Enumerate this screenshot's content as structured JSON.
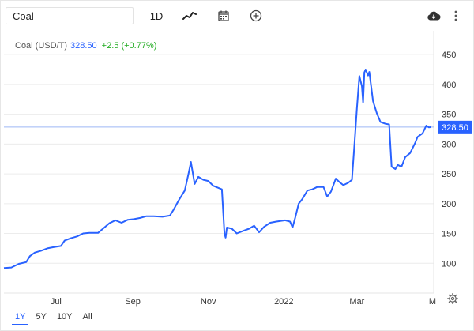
{
  "toolbar": {
    "symbol_value": "Coal",
    "period_label": "1D",
    "icons": [
      "line-chart-icon",
      "calendar-icon",
      "add-circle-icon",
      "cloud-download-icon",
      "more-vertical-icon"
    ]
  },
  "legend": {
    "name": "Coal (USD/T)",
    "price": "328.50",
    "change": "+2.5 (+0.77%)"
  },
  "ranges": [
    {
      "label": "1Y",
      "active": true
    },
    {
      "label": "5Y",
      "active": false
    },
    {
      "label": "10Y",
      "active": false
    },
    {
      "label": "All",
      "active": false
    }
  ],
  "colors": {
    "line": "#2962ff",
    "price_tag": "#2962ff",
    "change_up": "#22ab22",
    "grid": "#ececec"
  },
  "chart_data": {
    "type": "line",
    "title": "",
    "xlabel": "",
    "ylabel": "",
    "ylim": [
      50,
      490
    ],
    "xlim": [
      "2021-05-20",
      "2022-05-02"
    ],
    "y_ticks": [
      100,
      150,
      200,
      250,
      300,
      350,
      400,
      450
    ],
    "x_ticks": [
      {
        "date": "2021-07-01",
        "label": "Jul"
      },
      {
        "date": "2021-09-01",
        "label": "Sep"
      },
      {
        "date": "2021-11-01",
        "label": "Nov"
      },
      {
        "date": "2022-01-01",
        "label": "2022"
      },
      {
        "date": "2022-03-01",
        "label": "Mar"
      },
      {
        "date": "2022-05-01",
        "label": "M"
      }
    ],
    "last_price": 328.5,
    "grid": "horizontal",
    "series": [
      {
        "name": "",
        "points": [
          [
            "2021-05-20",
            92
          ],
          [
            "2021-05-26",
            93
          ],
          [
            "2021-06-01",
            99
          ],
          [
            "2021-06-07",
            102
          ],
          [
            "2021-06-10",
            112
          ],
          [
            "2021-06-14",
            118
          ],
          [
            "2021-06-19",
            121
          ],
          [
            "2021-06-24",
            125
          ],
          [
            "2021-06-29",
            127
          ],
          [
            "2021-07-05",
            129
          ],
          [
            "2021-07-08",
            138
          ],
          [
            "2021-07-13",
            142
          ],
          [
            "2021-07-18",
            145
          ],
          [
            "2021-07-23",
            150
          ],
          [
            "2021-07-28",
            151
          ],
          [
            "2021-08-04",
            151
          ],
          [
            "2021-08-08",
            158
          ],
          [
            "2021-08-13",
            167
          ],
          [
            "2021-08-18",
            172
          ],
          [
            "2021-08-23",
            168
          ],
          [
            "2021-08-28",
            173
          ],
          [
            "2021-09-02",
            174
          ],
          [
            "2021-09-07",
            176
          ],
          [
            "2021-09-12",
            179
          ],
          [
            "2021-09-18",
            179
          ],
          [
            "2021-09-25",
            178
          ],
          [
            "2021-10-01",
            180
          ],
          [
            "2021-10-04",
            190
          ],
          [
            "2021-10-08",
            205
          ],
          [
            "2021-10-13",
            222
          ],
          [
            "2021-10-16",
            250
          ],
          [
            "2021-10-18",
            270
          ],
          [
            "2021-10-21",
            233
          ],
          [
            "2021-10-24",
            245
          ],
          [
            "2021-10-28",
            240
          ],
          [
            "2021-11-01",
            238
          ],
          [
            "2021-11-05",
            230
          ],
          [
            "2021-11-12",
            224
          ],
          [
            "2021-11-14",
            150
          ],
          [
            "2021-11-15",
            143
          ],
          [
            "2021-11-16",
            160
          ],
          [
            "2021-11-20",
            158
          ],
          [
            "2021-11-24",
            150
          ],
          [
            "2021-11-30",
            155
          ],
          [
            "2021-12-04",
            158
          ],
          [
            "2021-12-08",
            163
          ],
          [
            "2021-12-12",
            152
          ],
          [
            "2021-12-16",
            161
          ],
          [
            "2021-12-21",
            168
          ],
          [
            "2021-12-26",
            170
          ],
          [
            "2022-01-02",
            172
          ],
          [
            "2022-01-06",
            170
          ],
          [
            "2022-01-08",
            160
          ],
          [
            "2022-01-10",
            175
          ],
          [
            "2022-01-13",
            200
          ],
          [
            "2022-01-16",
            208
          ],
          [
            "2022-01-20",
            222
          ],
          [
            "2022-01-24",
            224
          ],
          [
            "2022-01-28",
            228
          ],
          [
            "2022-02-02",
            228
          ],
          [
            "2022-02-05",
            212
          ],
          [
            "2022-02-08",
            220
          ],
          [
            "2022-02-12",
            242
          ],
          [
            "2022-02-15",
            236
          ],
          [
            "2022-02-18",
            231
          ],
          [
            "2022-02-22",
            235
          ],
          [
            "2022-02-25",
            240
          ],
          [
            "2022-02-27",
            300
          ],
          [
            "2022-03-01",
            360
          ],
          [
            "2022-03-03",
            414
          ],
          [
            "2022-03-05",
            397
          ],
          [
            "2022-03-06",
            370
          ],
          [
            "2022-03-07",
            420
          ],
          [
            "2022-03-08",
            425
          ],
          [
            "2022-03-10",
            415
          ],
          [
            "2022-03-11",
            421
          ],
          [
            "2022-03-14",
            372
          ],
          [
            "2022-03-17",
            352
          ],
          [
            "2022-03-20",
            337
          ],
          [
            "2022-03-24",
            334
          ],
          [
            "2022-03-27",
            333
          ],
          [
            "2022-03-29",
            262
          ],
          [
            "2022-04-01",
            258
          ],
          [
            "2022-04-03",
            265
          ],
          [
            "2022-04-06",
            262
          ],
          [
            "2022-04-09",
            278
          ],
          [
            "2022-04-13",
            285
          ],
          [
            "2022-04-17",
            302
          ],
          [
            "2022-04-19",
            312
          ],
          [
            "2022-04-23",
            318
          ],
          [
            "2022-04-26",
            331
          ],
          [
            "2022-04-28",
            328
          ],
          [
            "2022-04-30",
            328.5
          ]
        ]
      }
    ]
  }
}
